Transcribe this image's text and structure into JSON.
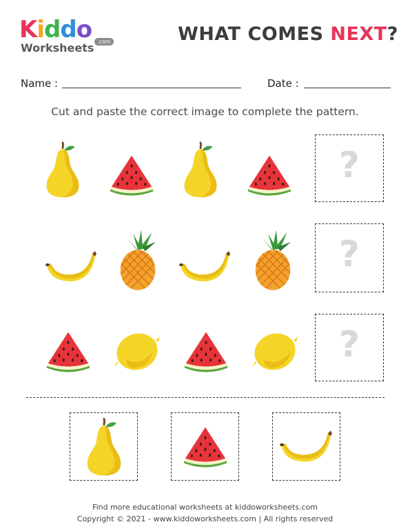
{
  "logo": {
    "letters": [
      "K",
      "i",
      "d",
      "d",
      "o"
    ],
    "letter_colors": [
      "#e8335a",
      "#f5a623",
      "#3fb34f",
      "#2f8fdb",
      "#7b4fc9"
    ],
    "subtitle": "Worksheets",
    "domain": ".com"
  },
  "title": {
    "part1": "WHAT COMES ",
    "part2": "NEXT",
    "part3": "?"
  },
  "form": {
    "name_label": "Name :",
    "date_label": "Date :"
  },
  "instruction": "Cut and paste the correct image to complete the pattern.",
  "rows": [
    {
      "items": [
        "pear-icon",
        "watermelon-icon",
        "pear-icon",
        "watermelon-icon"
      ],
      "answer": "?"
    },
    {
      "items": [
        "banana-icon",
        "pineapple-icon",
        "banana-icon",
        "pineapple-icon"
      ],
      "answer": "?"
    },
    {
      "items": [
        "watermelon-icon",
        "lemon-icon",
        "watermelon-icon",
        "lemon-icon"
      ],
      "answer": "?"
    }
  ],
  "cutouts": [
    "pear-icon",
    "watermelon-icon",
    "banana-icon"
  ],
  "footer": {
    "line1": "Find more educational worksheets at kiddoworksheets.com",
    "line2": "Copyright © 2021 - www.kiddoworksheets.com  |  All rights reserved"
  }
}
